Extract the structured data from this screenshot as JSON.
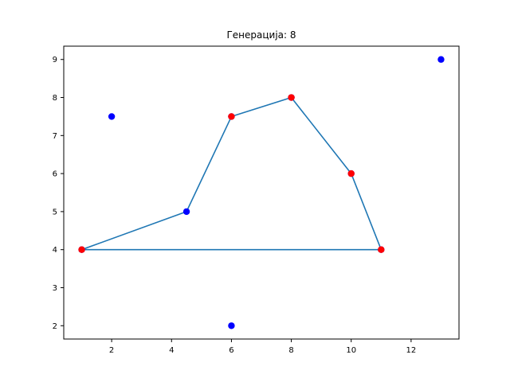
{
  "chart_data": {
    "type": "scatter",
    "title": "Генерација: 8",
    "xlabel": "",
    "ylabel": "",
    "xlim": [
      0.4,
      13.6
    ],
    "ylim": [
      1.65,
      9.35
    ],
    "xticks": [
      2,
      4,
      6,
      8,
      10,
      12
    ],
    "yticks": [
      2,
      3,
      4,
      5,
      6,
      7,
      8,
      9
    ],
    "grid": false,
    "colors": {
      "points": "#0000ff",
      "hull_points": "#ff0000",
      "line": "#1f77b4"
    },
    "points": [
      {
        "x": 2,
        "y": 7.5
      },
      {
        "x": 13,
        "y": 9
      },
      {
        "x": 6,
        "y": 2
      },
      {
        "x": 4.5,
        "y": 5
      },
      {
        "x": 1,
        "y": 4
      },
      {
        "x": 6,
        "y": 7.5
      },
      {
        "x": 8,
        "y": 8
      },
      {
        "x": 10,
        "y": 6
      },
      {
        "x": 11,
        "y": 4
      }
    ],
    "highlighted_points": [
      {
        "x": 1,
        "y": 4
      },
      {
        "x": 6,
        "y": 7.5
      },
      {
        "x": 8,
        "y": 8
      },
      {
        "x": 10,
        "y": 6
      },
      {
        "x": 11,
        "y": 4
      }
    ],
    "path": [
      {
        "x": 1,
        "y": 4
      },
      {
        "x": 4.5,
        "y": 5
      },
      {
        "x": 6,
        "y": 7.5
      },
      {
        "x": 8,
        "y": 8
      },
      {
        "x": 10,
        "y": 6
      },
      {
        "x": 11,
        "y": 4
      },
      {
        "x": 1,
        "y": 4
      }
    ]
  }
}
